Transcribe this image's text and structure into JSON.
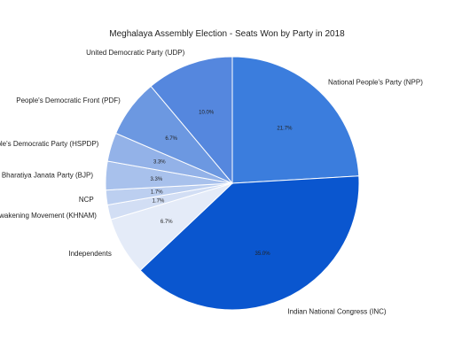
{
  "chart_data": {
    "type": "pie",
    "title": "Meghalaya Assembly Election - Seats Won by Party in 2018",
    "categories": [
      "National People's Party (NPP)",
      "Indian National Congress (INC)",
      "Independents",
      "Khun Hynniewtrep National Awakening Movement (KHNAM)",
      "NCP",
      "Bharatiya Janata Party (BJP)",
      "Hill State People's Democratic Party (HSPDP)",
      "People's Democratic Front (PDF)",
      "United Democratic Party (UDP)"
    ],
    "values": [
      21.7,
      35.0,
      6.7,
      1.7,
      1.7,
      3.3,
      3.3,
      6.7,
      10.0
    ],
    "value_labels": [
      "21.7%",
      "35.0%",
      "6.7%",
      "1.7%",
      "1.7%",
      "3.3%",
      "3.3%",
      "6.7%",
      "10.0%"
    ],
    "colors": [
      "#3b7ddd",
      "#0a56cf",
      "#e4ebf8",
      "#d2def4",
      "#bccff0",
      "#a8c1ec",
      "#93b2e8",
      "#6c98e1",
      "#5587de"
    ],
    "start_angle_deg": 90,
    "direction": "clockwise",
    "legend": "none"
  }
}
